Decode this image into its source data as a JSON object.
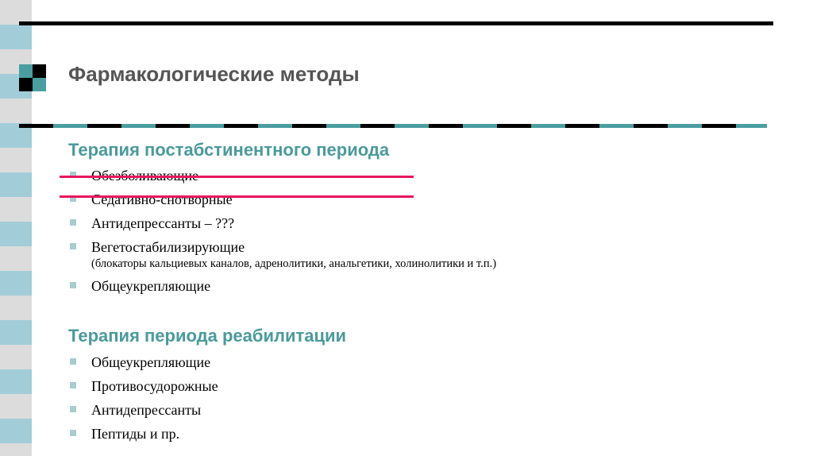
{
  "title": "Фармакологические методы",
  "sections": [
    {
      "heading": "Терапия постабстинентного периода",
      "items": [
        {
          "label": "Обезболивающие",
          "struck": true
        },
        {
          "label": "Седативно-снотворные",
          "struck": true
        },
        {
          "label": "Антидепрессанты – ???"
        },
        {
          "label": "Вегетостабилизирующие",
          "note": "(блокаторы кальциевых каналов, адренолитики, анальгетики, холинолитики и т.п.)"
        },
        {
          "label": "Общеукрепляющие"
        }
      ]
    },
    {
      "heading": "Терапия периода реабилитации",
      "items": [
        {
          "label": "Общеукрепляющие"
        },
        {
          "label": "Противосудорожные"
        },
        {
          "label": "Антидепрессанты"
        },
        {
          "label": "Пептиды и пр."
        }
      ]
    }
  ],
  "colors": {
    "accent": "#4a9a9c",
    "strike": "#e8175d",
    "strip_blue": "#a2cdd8",
    "strip_gray": "#dcdcdc"
  }
}
